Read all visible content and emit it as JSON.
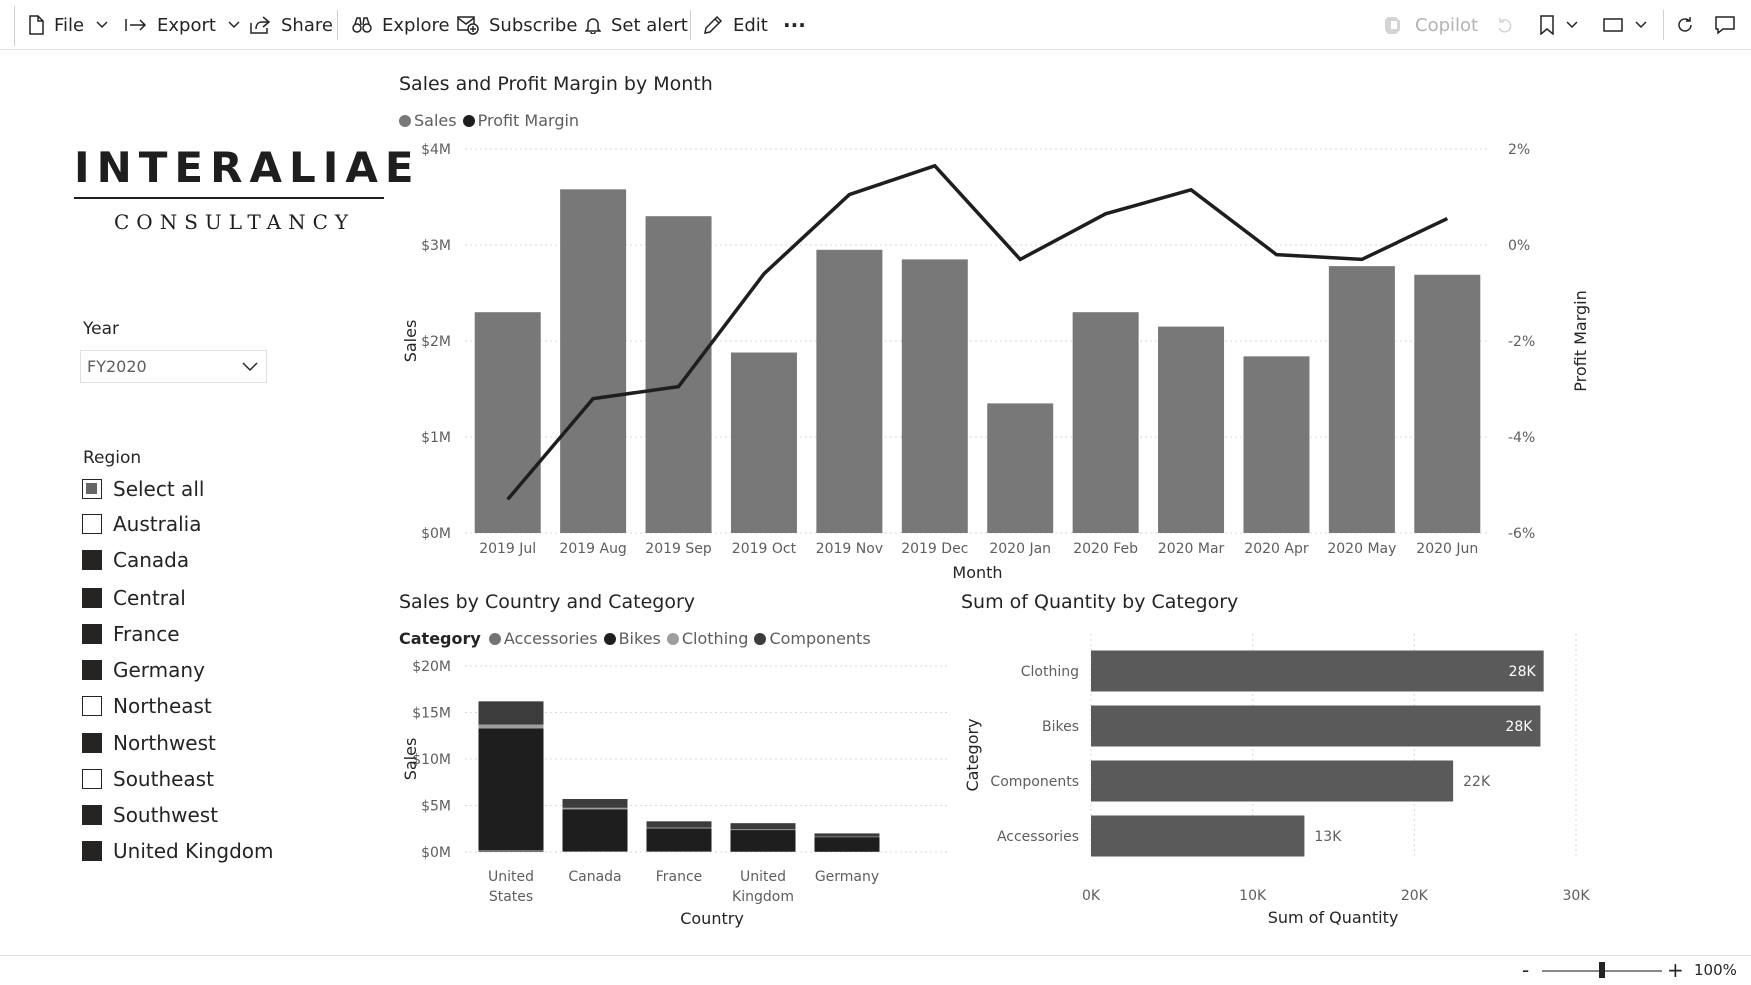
{
  "toolbar": {
    "file": "File",
    "export": "Export",
    "share": "Share",
    "explore": "Explore",
    "subscribe": "Subscribe",
    "set_alert": "Set alert",
    "edit": "Edit",
    "more": "···",
    "copilot": "Copilot"
  },
  "logo": {
    "top": "INTERALIAE",
    "bottom": "CONSULTANCY"
  },
  "year_slicer": {
    "title": "Year",
    "value": "FY2020"
  },
  "region_slicer": {
    "title": "Region",
    "items": [
      {
        "label": "Select all",
        "state": "partial"
      },
      {
        "label": "Australia",
        "state": "unchecked"
      },
      {
        "label": "Canada",
        "state": "checked"
      },
      {
        "label": "Central",
        "state": "checked"
      },
      {
        "label": "France",
        "state": "checked"
      },
      {
        "label": "Germany",
        "state": "checked"
      },
      {
        "label": "Northeast",
        "state": "unchecked"
      },
      {
        "label": "Northwest",
        "state": "checked"
      },
      {
        "label": "Southeast",
        "state": "unchecked"
      },
      {
        "label": "Southwest",
        "state": "checked"
      },
      {
        "label": "United Kingdom",
        "state": "checked"
      }
    ]
  },
  "statusbar": {
    "zoom": "100%",
    "zoom_out": "-",
    "zoom_in": "+",
    "zoom_level": 0.5
  },
  "colors": {
    "sales_bar": "#787878",
    "line": "#1e1e1e",
    "accessories": "#737373",
    "bikes": "#1e1e1e",
    "clothing": "#9e9e9e",
    "components": "#3c3c3c",
    "qty_bar": "#5a5a5a"
  },
  "chart_data": [
    {
      "type": "bar",
      "title": "Sales and Profit Margin by Month",
      "xlabel": "Month",
      "ylabel": "Sales",
      "y2label": "Profit Margin",
      "legend": [
        "Sales",
        "Profit Margin"
      ],
      "categories": [
        "2019 Jul",
        "2019 Aug",
        "2019 Sep",
        "2019 Oct",
        "2019 Nov",
        "2019 Dec",
        "2020 Jan",
        "2020 Feb",
        "2020 Mar",
        "2020 Apr",
        "2020 May",
        "2020 Jun"
      ],
      "series": [
        {
          "name": "Sales",
          "type": "bar",
          "values": [
            2.3,
            3.58,
            3.3,
            1.88,
            2.95,
            2.85,
            1.35,
            2.3,
            2.15,
            1.84,
            2.78,
            2.69
          ]
        },
        {
          "name": "Profit Margin",
          "type": "line",
          "values": [
            -5.3,
            -3.2,
            -2.95,
            -0.6,
            1.05,
            1.65,
            -0.3,
            0.65,
            1.15,
            -0.2,
            -0.3,
            0.55
          ]
        }
      ],
      "ylim": [
        0,
        4
      ],
      "y_ticks": [
        "$0M",
        "$1M",
        "$2M",
        "$3M",
        "$4M"
      ],
      "y2lim": [
        -6,
        2
      ],
      "y2_ticks": [
        "-6%",
        "-4%",
        "-2%",
        "0%",
        "2%"
      ]
    },
    {
      "type": "bar",
      "stacked": true,
      "title": "Sales by Country and Category",
      "legend_title": "Category",
      "xlabel": "Country",
      "ylabel": "Sales",
      "categories": [
        "United States",
        "Canada",
        "France",
        "United Kingdom",
        "Germany"
      ],
      "series": [
        {
          "name": "Accessories",
          "values": [
            0.2,
            0.1,
            0.08,
            0.06,
            0.05
          ]
        },
        {
          "name": "Bikes",
          "values": [
            13.1,
            4.5,
            2.45,
            2.3,
            1.55
          ]
        },
        {
          "name": "Clothing",
          "values": [
            0.4,
            0.15,
            0.1,
            0.08,
            0.05
          ]
        },
        {
          "name": "Components",
          "values": [
            2.5,
            0.95,
            0.67,
            0.66,
            0.35
          ]
        }
      ],
      "ylim": [
        0,
        20
      ],
      "y_ticks": [
        "$0M",
        "$5M",
        "$10M",
        "$15M",
        "$20M"
      ]
    },
    {
      "type": "bar",
      "orientation": "horizontal",
      "title": "Sum of Quantity by Category",
      "xlabel": "Sum of Quantity",
      "ylabel": "Category",
      "categories": [
        "Clothing",
        "Bikes",
        "Components",
        "Accessories"
      ],
      "values": [
        28000,
        27800,
        22400,
        13200
      ],
      "data_labels": [
        "28K",
        "28K",
        "22K",
        "13K"
      ],
      "xlim": [
        0,
        30000
      ],
      "x_ticks": [
        "0K",
        "10K",
        "20K",
        "30K"
      ]
    }
  ]
}
